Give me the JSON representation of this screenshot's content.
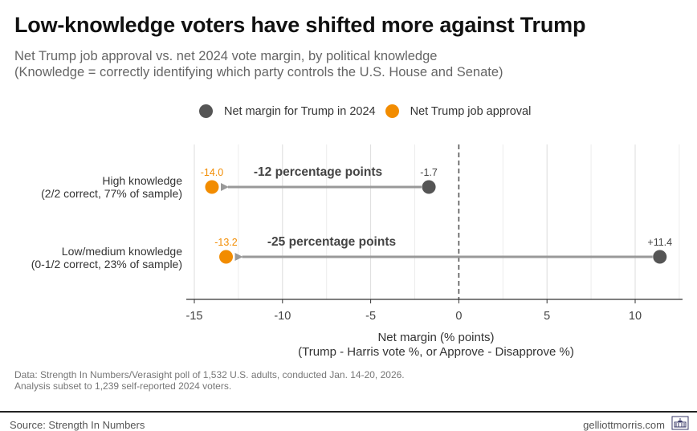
{
  "header": {
    "title": "Low-knowledge voters have shifted more against Trump",
    "subtitle_line1": "Net Trump job approval vs. net 2024 vote margin, by political knowledge",
    "subtitle_line2": "(Knowledge = correctly identifying which party controls the U.S. House and Senate)"
  },
  "legend": [
    {
      "label": "Net margin for Trump in 2024",
      "color": "#555555"
    },
    {
      "label": "Net Trump job approval",
      "color": "#F28C00"
    }
  ],
  "footer": {
    "note_line1": "Data: Strength In Numbers/Verasight poll of 1,532 U.S. adults, conducted Jan. 14-20, 2026.",
    "note_line2": "Analysis subset to 1,239 self-reported 2024 voters.",
    "source": "Source: Strength In Numbers",
    "site": "gelliottmorris.com",
    "logo_icon": "capitol-building-icon"
  },
  "chart_data": {
    "type": "dumbbell-arrow",
    "title": "Low-knowledge voters have shifted more against Trump",
    "xlabel_line1": "Net margin (% points)",
    "xlabel_line2": "(Trump - Harris vote %, or Approve - Disapprove %)",
    "xlim": [
      -15.5,
      12.7
    ],
    "xticks": [
      -15,
      -10,
      -5,
      0,
      5,
      10
    ],
    "xtick_labels": [
      "-15",
      "-10",
      "-5",
      "0",
      "5",
      "10"
    ],
    "grid": true,
    "reference_line": 0,
    "legend_position": "top",
    "series": [
      {
        "name": "Net margin for Trump in 2024",
        "color": "#555555"
      },
      {
        "name": "Net Trump job approval",
        "color": "#F28C00"
      }
    ],
    "rows": [
      {
        "label_line1": "High knowledge",
        "label_line2": "(2/2 correct, 77% of sample)",
        "vote_margin_2024": -1.7,
        "vote_label": "-1.7",
        "job_approval": -14.0,
        "approval_label": "-14.0",
        "shift_label": "-12 percentage points"
      },
      {
        "label_line1": "Low/medium knowledge",
        "label_line2": "(0-1/2 correct, 23% of sample)",
        "vote_margin_2024": 11.4,
        "vote_label": "+11.4",
        "job_approval": -13.2,
        "approval_label": "-13.2",
        "shift_label": "-25 percentage points"
      }
    ]
  }
}
